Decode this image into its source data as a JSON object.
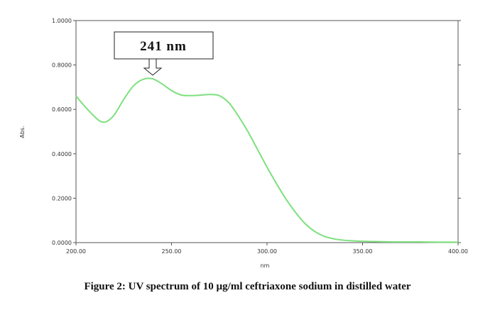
{
  "caption": "Figure 2: UV spectrum of 10 µg/ml ceftriaxone sodium in distilled water",
  "chart_data": {
    "type": "line",
    "title": "",
    "xlabel": "nm",
    "ylabel": "Abs.",
    "xlim": [
      200,
      400
    ],
    "ylim": [
      0,
      1
    ],
    "x_ticks": [
      "200.00",
      "250.00",
      "300.00",
      "350.00",
      "400.00"
    ],
    "y_ticks": [
      "0.0000",
      "0.2000",
      "0.4000",
      "0.6000",
      "0.8000",
      "1.0000"
    ],
    "grid": false,
    "line_color": "#7ee07e",
    "annotations": [
      {
        "text": "241 nm",
        "x": 241,
        "y": 0.735
      }
    ],
    "series": [
      {
        "x": [
          200,
          205,
          210,
          213,
          216,
          220,
          225,
          230,
          235,
          240,
          245,
          250,
          255,
          260,
          265,
          270,
          275,
          280,
          285,
          290,
          295,
          300,
          305,
          310,
          315,
          320,
          325,
          330,
          335,
          340,
          345,
          350,
          355,
          360,
          370,
          380,
          390,
          400
        ],
        "y": [
          0.66,
          0.61,
          0.565,
          0.545,
          0.545,
          0.575,
          0.645,
          0.705,
          0.735,
          0.738,
          0.715,
          0.685,
          0.665,
          0.662,
          0.664,
          0.667,
          0.662,
          0.63,
          0.57,
          0.5,
          0.42,
          0.34,
          0.265,
          0.195,
          0.135,
          0.085,
          0.05,
          0.028,
          0.017,
          0.011,
          0.008,
          0.006,
          0.005,
          0.004,
          0.003,
          0.003,
          0.002,
          0.002
        ]
      }
    ]
  }
}
